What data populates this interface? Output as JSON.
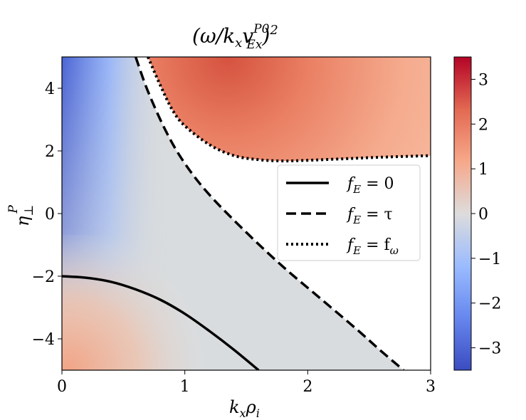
{
  "chart_data": {
    "type": "heatmap",
    "title": "(ω/k_x v_Ex^P0)^2",
    "xlabel": "k_xρ_i",
    "ylabel": "η_⊥^P",
    "xlim": [
      0,
      3
    ],
    "ylim": [
      -5,
      5
    ],
    "x_ticks": [
      "0",
      "1",
      "2",
      "3"
    ],
    "y_ticks": [
      "4",
      "2",
      "0",
      "−2",
      "−4"
    ],
    "colorbar": {
      "colormap": "coolwarm",
      "range": [
        -3.5,
        3.5
      ],
      "ticks": [
        "3",
        "2",
        "1",
        "0",
        "−1",
        "−2",
        "−3"
      ]
    },
    "legend_position": "center-right",
    "series": [
      {
        "name": "f_E = 0",
        "style": "solid",
        "x": [
          0,
          0.2,
          0.4,
          0.6,
          0.8,
          1.0,
          1.2,
          1.4,
          1.6
        ],
        "y": [
          -2.0,
          -2.05,
          -2.18,
          -2.42,
          -2.75,
          -3.2,
          -3.75,
          -4.35,
          -5.0
        ]
      },
      {
        "name": "f_E = τ",
        "style": "dashed",
        "x": [
          0.6,
          0.7,
          0.85,
          1.0,
          1.2,
          1.5,
          1.8,
          2.1,
          2.4,
          2.6,
          2.78
        ],
        "y": [
          5.0,
          3.9,
          2.6,
          1.6,
          0.6,
          -0.6,
          -1.7,
          -2.7,
          -3.7,
          -4.4,
          -5.0
        ]
      },
      {
        "name": "f_E = f_ω",
        "style": "dotted",
        "x": [
          0.7,
          0.8,
          0.9,
          1.0,
          1.2,
          1.4,
          1.6,
          1.8,
          2.0,
          2.3,
          2.6,
          3.0
        ],
        "y": [
          5.0,
          4.1,
          3.3,
          2.8,
          2.2,
          1.85,
          1.72,
          1.68,
          1.7,
          1.75,
          1.8,
          1.85
        ]
      }
    ],
    "legend": [
      "f_E = 0",
      "f_E = τ",
      "f_E = f_ω"
    ]
  },
  "labels": {
    "title_base": "(ω/k",
    "title_sub1": "x",
    "title_v": "v",
    "title_sup": "P0",
    "title_sub2": "Ex",
    "title_close": ")",
    "title_pow": "2",
    "xlabel_k": "k",
    "xlabel_sub_x": "x",
    "xlabel_rho": "ρ",
    "xlabel_sub_i": "i",
    "ylabel_eta": "η",
    "ylabel_sub": "⊥",
    "ylabel_sup": "P",
    "legend_1_f": "f",
    "legend_1_sub": "E",
    "legend_1_eq": " = 0",
    "legend_2_f": "f",
    "legend_2_sub": "E",
    "legend_2_eq": " = τ",
    "legend_3_f": "f",
    "legend_3_sub": "E",
    "legend_3_eq": " = f",
    "legend_3_sub2": "ω"
  }
}
